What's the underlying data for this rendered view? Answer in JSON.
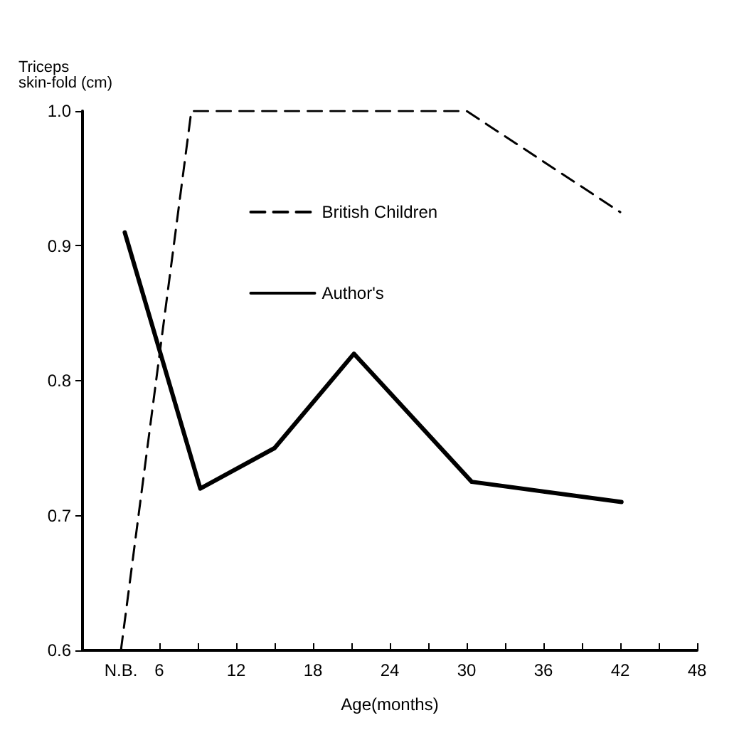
{
  "chart_data": {
    "type": "line",
    "ylabel": "Triceps\nskin-fold (cm)",
    "xlabel": "Age(months)",
    "xlim": [
      0,
      48
    ],
    "xticks": [
      {
        "value": 3,
        "label": "N.B."
      },
      6,
      {
        "value": 9,
        "label": null
      },
      12,
      {
        "value": 15,
        "label": null
      },
      18,
      {
        "value": 21,
        "label": null
      },
      24,
      {
        "value": 27,
        "label": null
      },
      30,
      {
        "value": 33,
        "label": null
      },
      36,
      {
        "value": 39,
        "label": null
      },
      42,
      {
        "value": 45,
        "label": null
      },
      48
    ],
    "ylim": [
      0.6,
      1.0
    ],
    "yticks": [
      0.6,
      0.7,
      0.8,
      0.9,
      {
        "value": 1.0,
        "label": "1.0"
      }
    ],
    "grid": false,
    "legend": "top",
    "marker": "none",
    "series": [
      {
        "name": "British Children",
        "color": "#000000",
        "line_style": "dashed",
        "x": [
          3,
          8.5,
          30,
          42
        ],
        "values": [
          0.6,
          1.0,
          1.0,
          0.925
        ]
      },
      {
        "name": "Author's",
        "color": "#000000",
        "line_style": "solid",
        "x": [
          3.3,
          9.2,
          15,
          21.2,
          30.4,
          42.1
        ],
        "values": [
          0.91,
          0.72,
          0.75,
          0.82,
          0.725,
          0.71
        ]
      }
    ]
  }
}
